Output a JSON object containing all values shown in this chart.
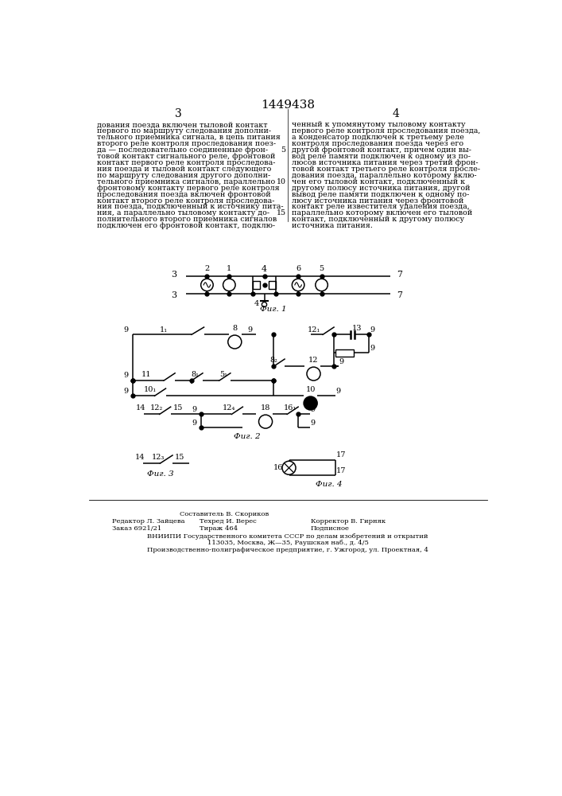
{
  "page_number": "1449438",
  "col_left_num": "3",
  "col_right_num": "4",
  "left_text": [
    "дования поезда включен тыловой контакт",
    "первого по маршруту следования дополни-",
    "тельного приемника сигнала, в цепь питания",
    "второго реле контроля проследования поез-",
    "да — последовательно соединенные фрон-",
    "товой контакт сигнального реле, фронтовой",
    "контакт первого реле контроля проследова-",
    "ния поезда и тыловой контакт следующего",
    "по маршруту следования другого дополни-",
    "тельного приемника сигналов, параллельно",
    "фронтовому контакту первого реле контроля",
    "проследования поезда включен фронтовой",
    "контакт второго реле контроля проследова-",
    "ния поезда, подключенный к источнику пита-",
    "ния, а параллельно тыловому контакту до-",
    "полнительного второго приемника сигналов",
    "подключен его фронтовой контакт, подклю-"
  ],
  "right_text": [
    "ченный к упомянутому тыловому контакту",
    "первого реле контроля проследования поезда,",
    "а конденсатор подключен к третьему реле",
    "контроля проследования поезда через его",
    "другой фронтовой контакт, причем один вы-",
    "вод реле памяти подключен к одному из по-",
    "люсов источника питания через третий фрон-",
    "товой контакт третьего реле контроля просле-",
    "дования поезда, параллельно которому вклю-",
    "чен его тыловой контакт, подключенный к",
    "другому полюсу источника питания, другой",
    "вывод реле памяти подключен к одному по-",
    "люсу источника питания через фронтовой",
    "контакт реле известителя удаления поезда,",
    "параллельно которому включен его тыловой",
    "контакт, подключенный к другому полюсу",
    "источника питания."
  ],
  "footer_col1_line1": "Редактор Л. Зайцева",
  "footer_col1_line2": "Заказ 6921/21",
  "footer_col2_line0": "Составитель В. Скориков",
  "footer_col2_line1": "Техред И. Верес",
  "footer_col2_line2": "Тираж 464",
  "footer_col3_line1": "Корректор В. Гирняк",
  "footer_col3_line2": "Подписное",
  "footer_line3": "ВНИИПИ Государственного комитета СССР по делам изобретений и открытий",
  "footer_line4": "113035, Москва, Ж—35, Раушская наб., д. 4/5",
  "footer_line5": "Производственно-полиграфическое предприятие, г. Ужгород, ул. Проектная, 4",
  "bg_color": "#ffffff",
  "text_color": "#000000"
}
